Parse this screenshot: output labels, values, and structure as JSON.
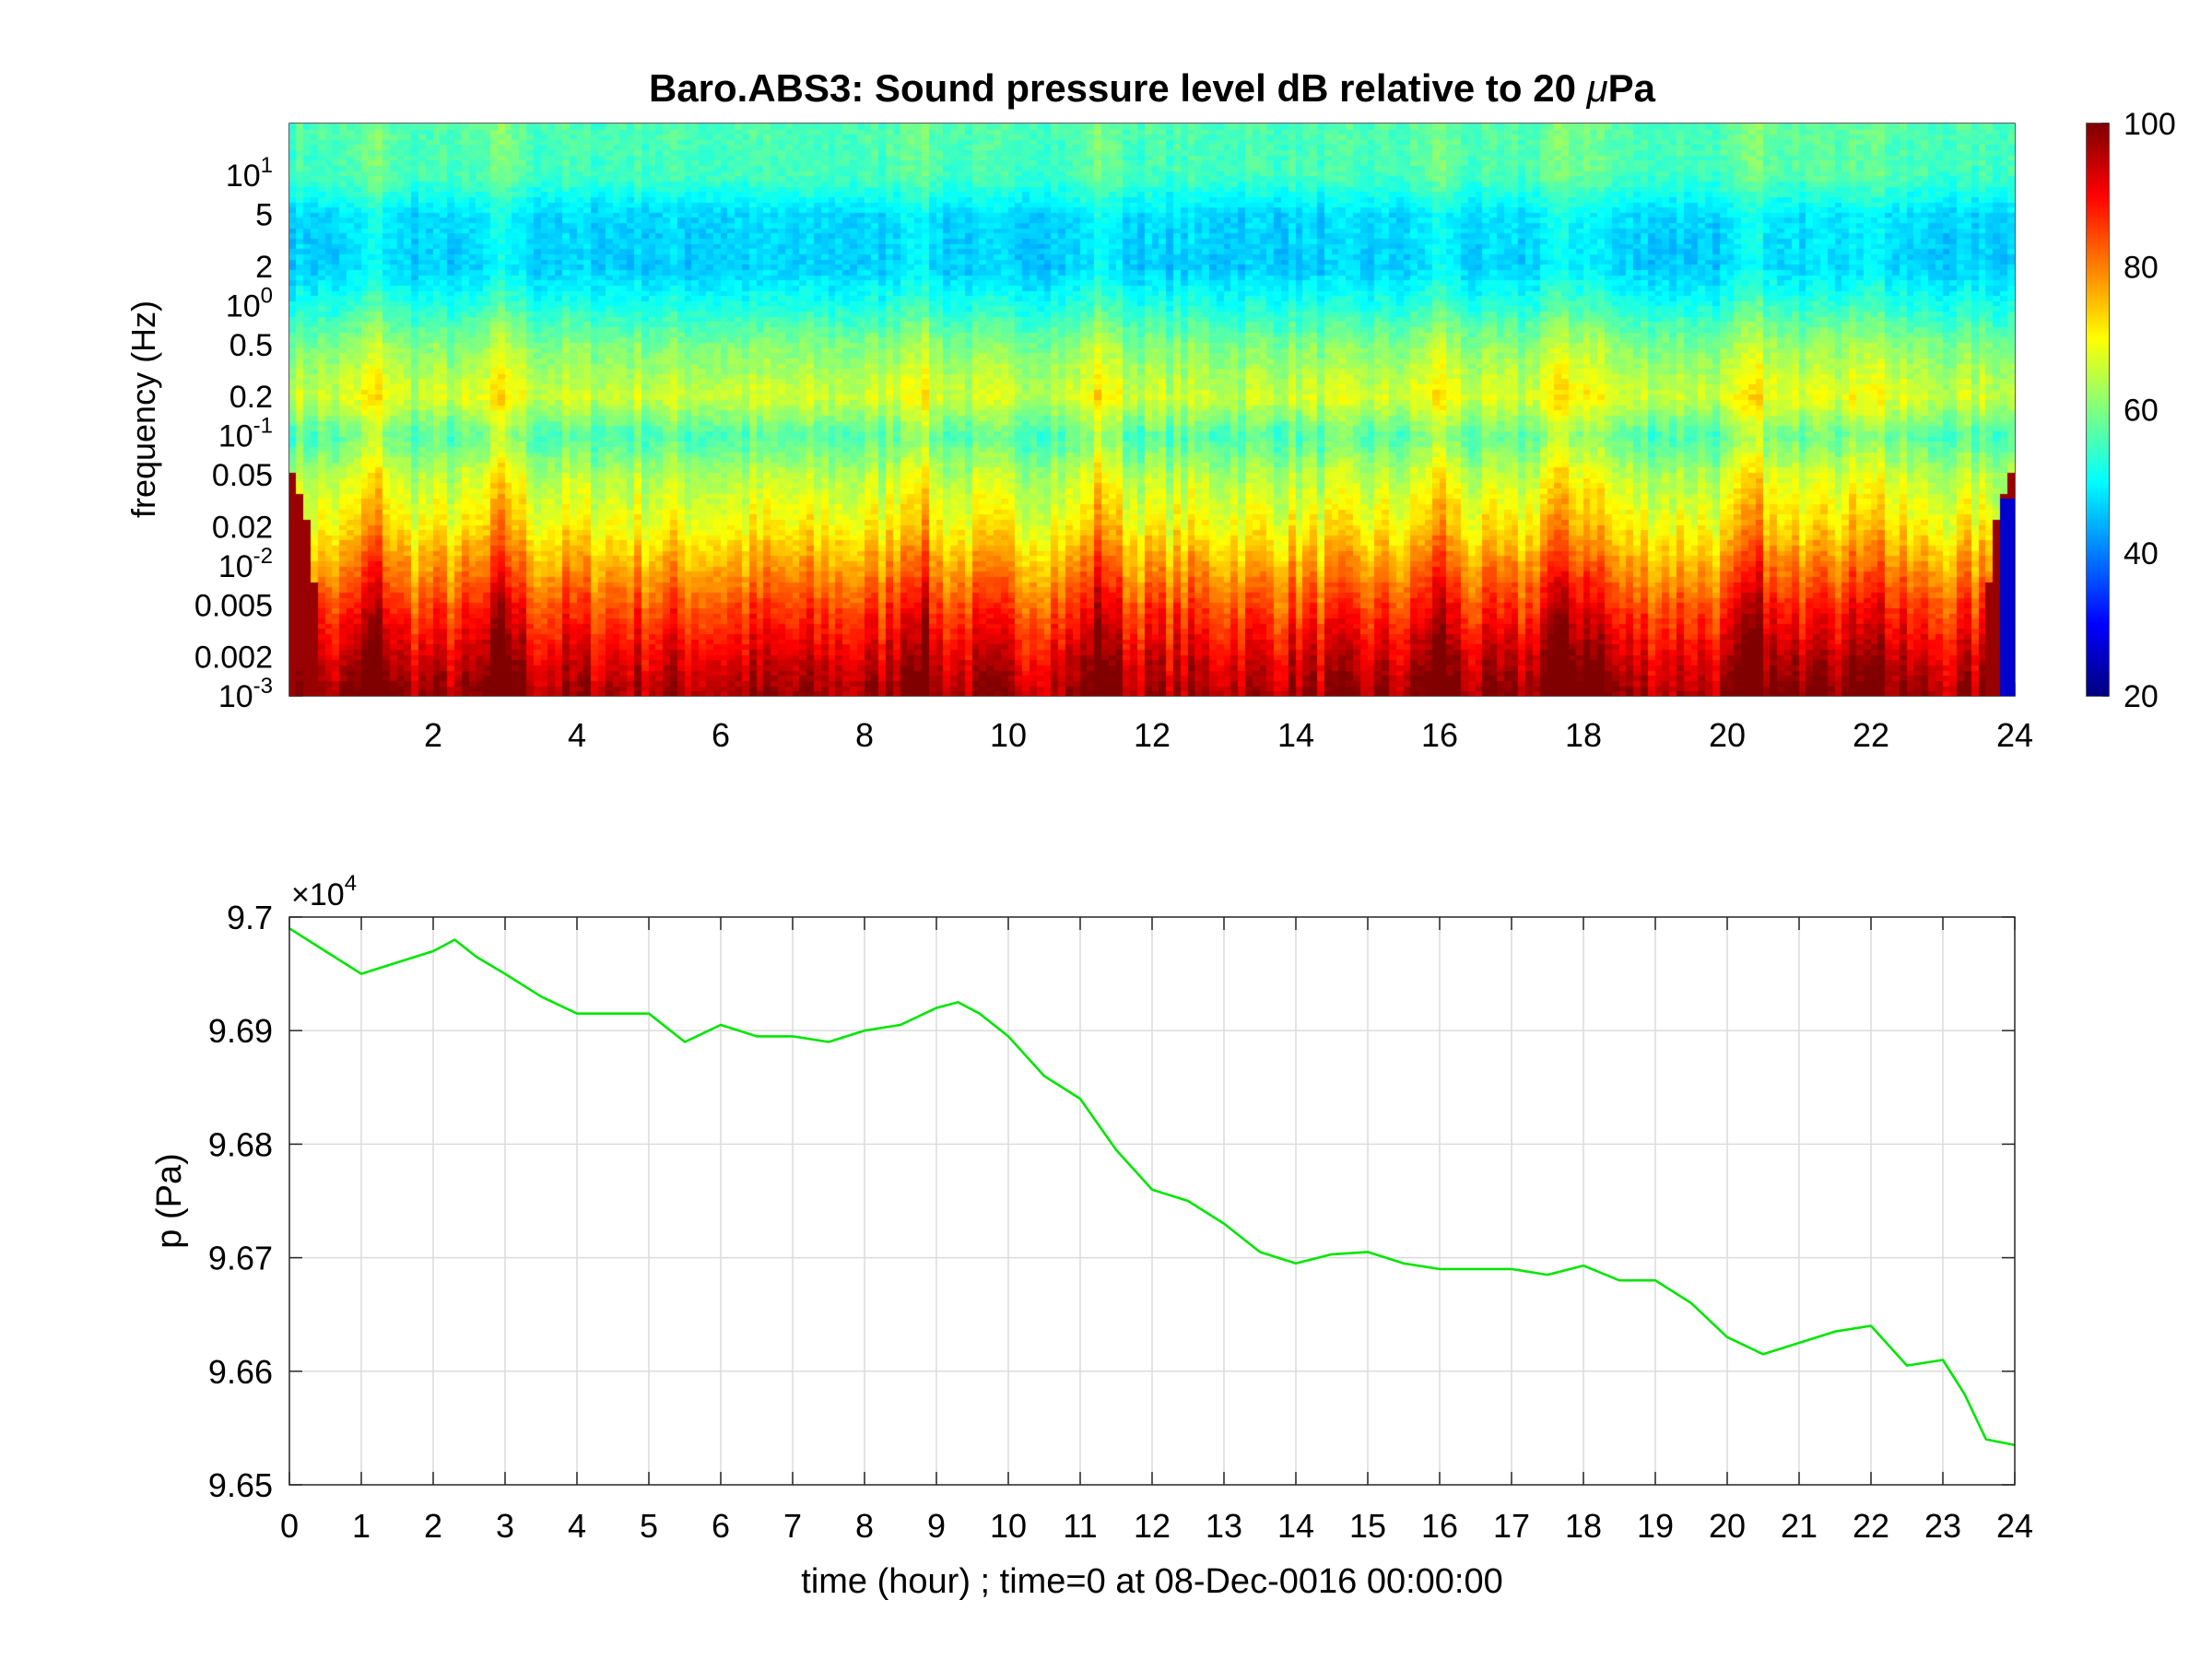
{
  "figure": {
    "title_prefix": "Baro.ABS3: Sound pressure level dB relative to 20 ",
    "title_mu": "μ",
    "title_suffix": "Pa"
  },
  "chart_data": [
    {
      "type": "heatmap",
      "title": "Baro.ABS3: Sound pressure level dB relative to 20 μPa",
      "xlabel": "",
      "ylabel": "frequency (Hz)",
      "xlim": [
        0,
        24
      ],
      "xscale": "linear",
      "xticks": [
        2,
        4,
        6,
        8,
        10,
        12,
        14,
        16,
        18,
        20,
        22,
        24
      ],
      "yscale": "log",
      "ylim": [
        0.001,
        25
      ],
      "yticks": [
        {
          "value": 0.001,
          "base": "10",
          "exp": "-3"
        },
        {
          "value": 0.002,
          "text": "0.002"
        },
        {
          "value": 0.005,
          "text": "0.005"
        },
        {
          "value": 0.01,
          "base": "10",
          "exp": "-2"
        },
        {
          "value": 0.02,
          "text": "0.02"
        },
        {
          "value": 0.05,
          "text": "0.05"
        },
        {
          "value": 0.1,
          "base": "10",
          "exp": "-1"
        },
        {
          "value": 0.2,
          "text": "0.2"
        },
        {
          "value": 0.5,
          "text": "0.5"
        },
        {
          "value": 1,
          "base": "10",
          "exp": "0"
        },
        {
          "value": 2,
          "text": "2"
        },
        {
          "value": 5,
          "text": "5"
        },
        {
          "value": 10,
          "base": "10",
          "exp": "1"
        }
      ],
      "colormap": "jet",
      "colorbar": {
        "clim": [
          20,
          100
        ],
        "ticks": [
          20,
          40,
          60,
          80,
          100
        ]
      },
      "grid": false,
      "level_profile_db": [
        {
          "f": 0.001,
          "db": 97
        },
        {
          "f": 0.002,
          "db": 92
        },
        {
          "f": 0.005,
          "db": 84
        },
        {
          "f": 0.01,
          "db": 77
        },
        {
          "f": 0.02,
          "db": 70
        },
        {
          "f": 0.05,
          "db": 64
        },
        {
          "f": 0.1,
          "db": 56
        },
        {
          "f": 0.2,
          "db": 66
        },
        {
          "f": 0.5,
          "db": 60
        },
        {
          "f": 1,
          "db": 52
        },
        {
          "f": 2,
          "db": 46
        },
        {
          "f": 5,
          "db": 47
        },
        {
          "f": 10,
          "db": 55
        },
        {
          "f": 25,
          "db": 56
        }
      ],
      "events_hour": [
        1.2,
        3.0,
        8.7,
        11.3,
        16.0,
        17.6,
        18.1,
        20.4,
        21.3,
        22.0
      ]
    },
    {
      "type": "line",
      "title": "",
      "xlabel": "time (hour) ; time=0 at 08-Dec-0016 00:00:00",
      "ylabel": "p (Pa)",
      "y_multiplier_base": "×10",
      "y_multiplier_exp": "4",
      "xlim": [
        0,
        24
      ],
      "ylim": [
        9.65,
        9.7
      ],
      "xticks": [
        0,
        1,
        2,
        3,
        4,
        5,
        6,
        7,
        8,
        9,
        10,
        11,
        12,
        13,
        14,
        15,
        16,
        17,
        18,
        19,
        20,
        21,
        22,
        23,
        24
      ],
      "yticks": [
        "9.65",
        "9.66",
        "9.67",
        "9.68",
        "9.69",
        "9.7"
      ],
      "grid": true,
      "color": "#00e600",
      "series": [
        {
          "x": [
            0,
            0.5,
            1,
            1.5,
            2,
            2.3,
            2.6,
            3,
            3.5,
            4,
            4.5,
            5,
            5.5,
            6,
            6.5,
            7,
            7.5,
            8,
            8.5,
            9,
            9.3,
            9.6,
            10,
            10.5,
            11,
            11.5,
            12,
            12.5,
            13,
            13.5,
            14,
            14.5,
            15,
            15.5,
            16,
            16.5,
            17,
            17.5,
            18,
            18.5,
            19,
            19.5,
            20,
            20.5,
            21,
            21.5,
            22,
            22.5,
            23,
            23.3,
            23.6,
            24
          ],
          "y": [
            9.699,
            9.697,
            9.695,
            9.696,
            9.697,
            9.698,
            9.6965,
            9.695,
            9.693,
            9.6915,
            9.6915,
            9.6915,
            9.689,
            9.6905,
            9.6895,
            9.6895,
            9.689,
            9.69,
            9.6905,
            9.692,
            9.6925,
            9.6915,
            9.6895,
            9.686,
            9.684,
            9.6795,
            9.676,
            9.675,
            9.673,
            9.6705,
            9.6695,
            9.6703,
            9.6705,
            9.6695,
            9.669,
            9.669,
            9.669,
            9.6685,
            9.6693,
            9.668,
            9.668,
            9.666,
            9.663,
            9.6615,
            9.6625,
            9.6635,
            9.664,
            9.6605,
            9.661,
            9.658,
            9.654,
            9.6535
          ]
        }
      ]
    }
  ]
}
